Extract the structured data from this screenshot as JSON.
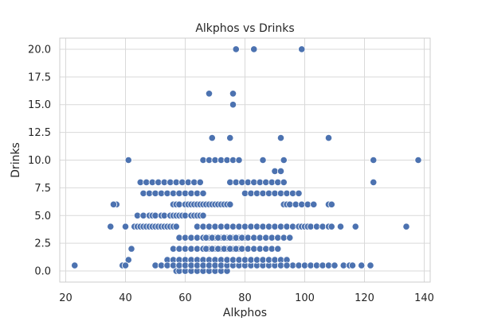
{
  "chart_data": {
    "type": "scatter",
    "title": "Alkphos vs Drinks",
    "xlabel": "Alkphos",
    "ylabel": "Drinks",
    "xlim": [
      18,
      142
    ],
    "ylim": [
      -1,
      21
    ],
    "xticks": [
      20,
      40,
      60,
      80,
      100,
      120,
      140
    ],
    "yticks": [
      0.0,
      2.5,
      5.0,
      7.5,
      10.0,
      12.5,
      15.0,
      17.5,
      20.0
    ],
    "xtick_labels": [
      "20",
      "40",
      "60",
      "80",
      "100",
      "120",
      "140"
    ],
    "ytick_labels": [
      "0.0",
      "2.5",
      "5.0",
      "7.5",
      "10.0",
      "12.5",
      "15.0",
      "17.5",
      "20.0"
    ],
    "grid": true,
    "marker_color": "#4c72b0",
    "x": [
      23,
      35,
      37,
      36,
      40,
      41,
      42,
      41,
      40,
      39,
      40,
      43,
      44,
      45,
      46,
      47,
      48,
      49,
      50,
      51,
      52,
      53,
      54,
      55,
      56,
      57,
      44,
      46,
      48,
      49,
      50,
      52,
      53,
      55,
      56,
      57,
      58,
      59,
      60,
      62,
      63,
      64,
      65,
      66,
      46,
      48,
      50,
      52,
      54,
      56,
      58,
      60,
      62,
      64,
      66,
      45,
      47,
      49,
      51,
      53,
      55,
      57,
      59,
      61,
      63,
      65,
      56,
      57,
      58,
      60,
      61,
      62,
      63,
      64,
      65,
      66,
      67,
      68,
      69,
      70,
      71,
      72,
      73,
      74,
      75,
      58,
      60,
      62,
      64,
      66,
      68,
      70,
      72,
      74,
      76,
      78,
      80,
      56,
      58,
      60,
      62,
      64,
      66,
      68,
      70,
      72,
      74,
      76,
      78,
      54,
      56,
      58,
      60,
      62,
      64,
      66,
      68,
      70,
      72,
      57,
      58,
      60,
      62,
      64,
      66,
      68,
      70,
      72,
      74,
      50,
      52,
      54,
      56,
      58,
      60,
      62,
      64,
      66,
      68,
      70,
      72,
      74,
      76,
      78,
      80,
      82,
      84,
      86,
      88,
      90,
      92,
      94,
      96,
      64,
      66,
      68,
      70,
      72,
      74,
      76,
      78,
      80,
      82,
      84,
      86,
      88,
      90,
      92,
      67,
      69,
      71,
      73,
      75,
      77,
      79,
      81,
      83,
      85,
      87,
      89,
      91,
      93,
      95,
      67,
      69,
      71,
      73,
      75,
      77,
      79,
      81,
      83,
      85,
      87,
      89,
      91,
      74,
      76,
      78,
      80,
      82,
      84,
      86,
      88,
      90,
      92,
      94,
      66,
      68,
      70,
      72,
      74,
      76,
      78,
      75,
      77,
      79,
      81,
      83,
      85,
      87,
      89,
      91,
      93,
      80,
      82,
      84,
      86,
      88,
      90,
      92,
      94,
      96,
      98,
      68,
      76,
      76,
      77,
      75,
      69,
      92,
      83,
      99,
      108,
      86,
      90,
      92,
      93,
      94,
      96,
      98,
      99,
      100,
      101,
      102,
      104,
      106,
      108,
      109,
      92,
      94,
      98,
      100,
      102,
      104,
      106,
      108,
      110,
      113,
      115,
      93,
      94,
      95,
      97,
      99,
      101,
      103,
      108,
      109,
      112,
      116,
      117,
      119,
      122,
      123,
      123,
      134,
      138
    ],
    "y": [
      0.5,
      4,
      6,
      6,
      4,
      10,
      2,
      1,
      0.5,
      0.5,
      0.5,
      4,
      4,
      4,
      4,
      4,
      4,
      4,
      4,
      4,
      4,
      4,
      4,
      4,
      4,
      4,
      5,
      5,
      5,
      5,
      5,
      5,
      5,
      5,
      5,
      5,
      5,
      5,
      5,
      5,
      5,
      5,
      5,
      5,
      7,
      7,
      7,
      7,
      7,
      7,
      7,
      7,
      7,
      7,
      7,
      8,
      8,
      8,
      8,
      8,
      8,
      8,
      8,
      8,
      8,
      8,
      6,
      6,
      6,
      6,
      6,
      6,
      6,
      6,
      6,
      6,
      6,
      6,
      6,
      6,
      6,
      6,
      6,
      6,
      6,
      3,
      3,
      3,
      3,
      3,
      3,
      3,
      3,
      3,
      3,
      3,
      3,
      2,
      2,
      2,
      2,
      2,
      2,
      2,
      2,
      2,
      2,
      2,
      2,
      1,
      1,
      1,
      1,
      1,
      1,
      1,
      1,
      1,
      1,
      0,
      0,
      0,
      0,
      0,
      0,
      0,
      0,
      0,
      0,
      0.5,
      0.5,
      0.5,
      0.5,
      0.5,
      0.5,
      0.5,
      0.5,
      0.5,
      0.5,
      0.5,
      0.5,
      0.5,
      0.5,
      0.5,
      0.5,
      0.5,
      0.5,
      0.5,
      0.5,
      0.5,
      0.5,
      0.5,
      0.5,
      4,
      4,
      4,
      4,
      4,
      4,
      4,
      4,
      4,
      4,
      4,
      4,
      4,
      4,
      4,
      3,
      3,
      3,
      3,
      3,
      3,
      3,
      3,
      3,
      3,
      3,
      3,
      3,
      3,
      3,
      2,
      2,
      2,
      2,
      2,
      2,
      2,
      2,
      2,
      2,
      2,
      2,
      2,
      1,
      1,
      1,
      1,
      1,
      1,
      1,
      1,
      1,
      1,
      1,
      10,
      10,
      10,
      10,
      10,
      10,
      10,
      8,
      8,
      8,
      8,
      8,
      8,
      8,
      8,
      8,
      8,
      7,
      7,
      7,
      7,
      7,
      7,
      7,
      7,
      7,
      7,
      16,
      16,
      15,
      20,
      12,
      12,
      12,
      20,
      20,
      12,
      10,
      9,
      9,
      10,
      4,
      4,
      4,
      4,
      4,
      4,
      4,
      4,
      4,
      4,
      4,
      0.5,
      0.5,
      0.5,
      0.5,
      0.5,
      0.5,
      0.5,
      0.5,
      0.5,
      0.5,
      0.5,
      6,
      6,
      6,
      6,
      6,
      6,
      6,
      6,
      6,
      4,
      0.5,
      4,
      0.5,
      0.5,
      10,
      8,
      4,
      10
    ]
  }
}
